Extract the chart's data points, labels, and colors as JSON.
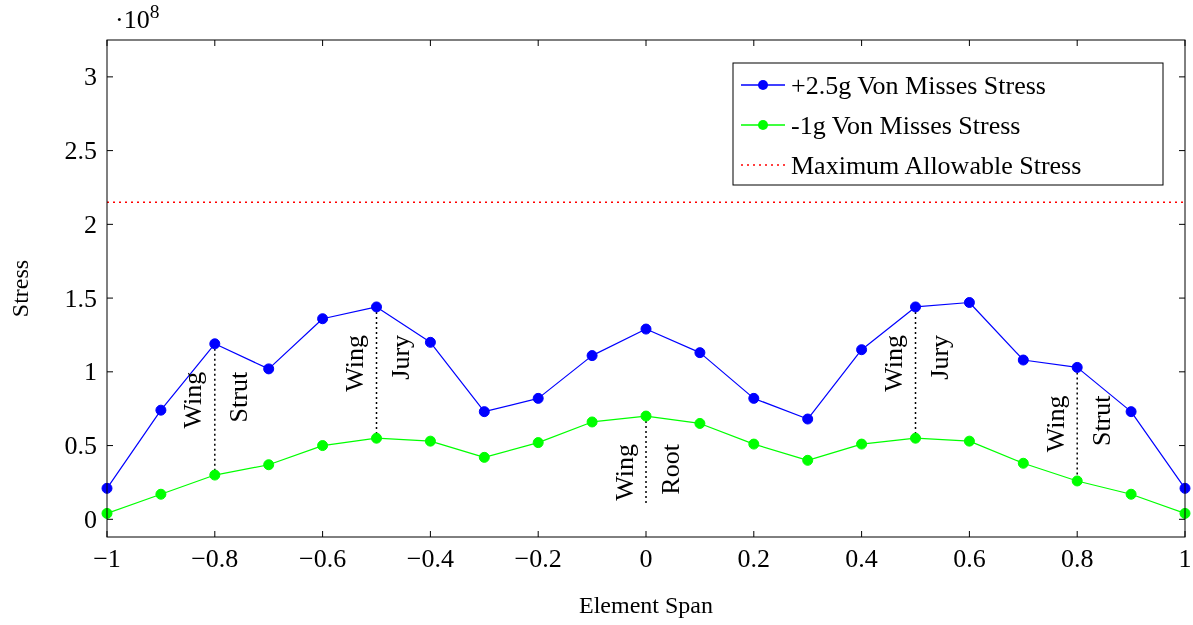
{
  "chart_data": {
    "type": "line",
    "xlabel": "Element Span",
    "ylabel": "Stress",
    "x": [
      -1,
      -0.9,
      -0.8,
      -0.7,
      -0.6,
      -0.5,
      -0.4,
      -0.3,
      -0.2,
      -0.1,
      0,
      0.1,
      0.2,
      0.3,
      0.4,
      0.5,
      0.6,
      0.7,
      0.8,
      0.9,
      1
    ],
    "series": [
      {
        "name": "+2.5g Von Misses Stress",
        "color": "#0000ff",
        "marker": "circle",
        "values": [
          0.21,
          0.74,
          1.19,
          1.02,
          1.36,
          1.44,
          1.2,
          0.73,
          0.82,
          1.11,
          1.29,
          1.13,
          0.82,
          0.68,
          1.15,
          1.44,
          1.47,
          1.08,
          1.03,
          0.73,
          0.21
        ]
      },
      {
        "name": "-1g Von Misses Stress",
        "color": "#00ff00",
        "marker": "circle",
        "values": [
          0.04,
          0.17,
          0.3,
          0.37,
          0.5,
          0.55,
          0.53,
          0.42,
          0.52,
          0.66,
          0.7,
          0.65,
          0.51,
          0.4,
          0.51,
          0.55,
          0.53,
          0.38,
          0.26,
          0.17,
          0.04
        ]
      }
    ],
    "ref_lines": [
      {
        "axis": "y",
        "value": 2.15,
        "label": "Maximum Allowable Stress",
        "color": "#ff0000",
        "line_style": "dotted"
      }
    ],
    "annotations": [
      "·10$^{8}$",
      {
        "text": "Wing",
        "x": -0.8,
        "y": 1.19
      },
      {
        "text": "Strut",
        "x": -0.8,
        "y": 1.19
      },
      {
        "text": "Wing",
        "x": -0.5,
        "y": 1.44
      },
      {
        "text": "Jury",
        "x": -0.5,
        "y": 1.44
      },
      {
        "text": "Wing",
        "x": 0,
        "y": 0.7
      },
      {
        "text": "Root",
        "x": 0,
        "y": 0.7
      },
      {
        "text": "Wing",
        "x": 0.5,
        "y": 1.44
      },
      {
        "text": "Jury",
        "x": 0.5,
        "y": 1.44
      },
      {
        "text": "Wing",
        "x": 0.8,
        "y": 1.03
      },
      {
        "text": "Strut",
        "x": 0.8,
        "y": 1.03
      }
    ],
    "xlim": [
      -1,
      1
    ],
    "ylim": [
      -0.12,
      3.25
    ],
    "xticks": [
      {
        "value": -1,
        "label": "−1"
      },
      {
        "value": -0.8,
        "label": "−0.8"
      },
      {
        "value": -0.6,
        "label": "−0.6"
      },
      {
        "value": -0.4,
        "label": "−0.4"
      },
      {
        "value": -0.2,
        "label": "−0.2"
      },
      0,
      0.2,
      0.4,
      0.6,
      0.8,
      1
    ],
    "yticks": [
      0,
      0.5,
      1,
      1.5,
      2,
      2.5,
      3
    ],
    "legend": "top right",
    "grid": false,
    "line_style": "solid"
  }
}
